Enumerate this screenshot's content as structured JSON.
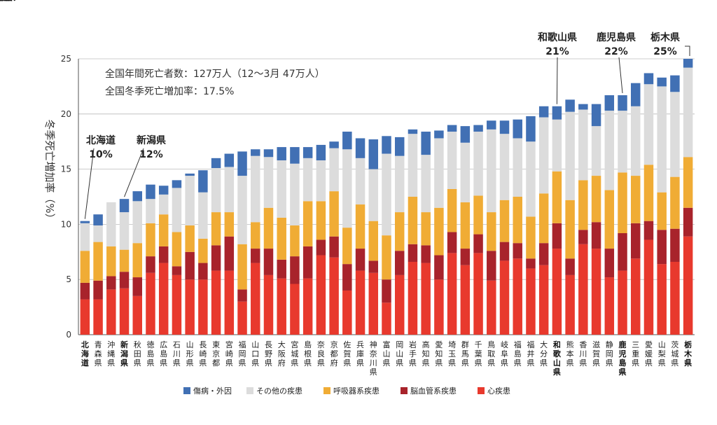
{
  "chart_data": {
    "type": "bar",
    "stacked": true,
    "ylabel": "冬季死亡増加率（%）",
    "ylim": [
      0,
      25
    ],
    "yticks": [
      0,
      5,
      10,
      15,
      20,
      25
    ],
    "grid": true,
    "legend_position": "bottom",
    "notes": [
      "全国年間死亡者数：127万人（12〜3月 47万人）",
      "全国冬季死亡増加率：17.5%"
    ],
    "categories": [
      "北海道",
      "青森県",
      "沖縄県",
      "新潟県",
      "秋田県",
      "徳島県",
      "広島県",
      "石川県",
      "山形県",
      "長崎県",
      "東京都",
      "宮崎県",
      "福岡県",
      "山口県",
      "長野県",
      "大阪府",
      "宮城県",
      "島根県",
      "奈良県",
      "京都府",
      "佐賀県",
      "兵庫県",
      "神奈川県",
      "富山県",
      "岡山県",
      "岩手県",
      "高知県",
      "愛知県",
      "埼玉県",
      "群馬県",
      "千葉県",
      "鳥取県",
      "岐阜県",
      "福島県",
      "福井県",
      "大分県",
      "和歌山県",
      "熊本県",
      "香川県",
      "滋賀県",
      "静岡県",
      "鹿児島県",
      "三重県",
      "愛媛県",
      "山梨県",
      "茨城県",
      "栃木県"
    ],
    "highlighted": [
      "北海道",
      "新潟県",
      "和歌山県",
      "鹿児島県",
      "栃木県"
    ],
    "series": [
      {
        "name": "心疾患",
        "color": "#e8392d",
        "values": [
          3.2,
          3.2,
          4.1,
          4.2,
          3.5,
          5.6,
          6.5,
          5.4,
          5.0,
          5.0,
          5.8,
          5.8,
          3.0,
          6.5,
          5.4,
          5.1,
          4.6,
          5.1,
          7.2,
          7.0,
          4.0,
          5.8,
          5.6,
          2.9,
          5.4,
          6.6,
          6.5,
          5.0,
          7.4,
          6.3,
          7.4,
          4.9,
          6.7,
          6.9,
          6.0,
          6.3,
          7.8,
          5.4,
          8.2,
          7.8,
          5.2,
          5.8,
          6.9,
          8.6,
          6.4,
          6.6,
          8.9
        ]
      },
      {
        "name": "脳血管系疾患",
        "color": "#a8232b",
        "values": [
          1.5,
          1.7,
          1.2,
          1.5,
          1.7,
          1.5,
          1.5,
          0.8,
          2.5,
          1.5,
          2.3,
          3.1,
          1.1,
          1.3,
          2.4,
          1.7,
          2.5,
          2.9,
          1.4,
          1.9,
          2.4,
          2.0,
          1.1,
          2.1,
          2.2,
          1.6,
          1.6,
          2.2,
          1.9,
          1.5,
          1.7,
          2.7,
          1.7,
          1.4,
          0.9,
          2.0,
          2.3,
          1.5,
          1.3,
          2.4,
          2.6,
          3.4,
          3.2,
          1.7,
          3.1,
          3.0,
          2.6
        ]
      },
      {
        "name": "呼吸器系疾患",
        "color": "#f0ac35",
        "values": [
          2.9,
          3.5,
          2.7,
          2.0,
          3.1,
          3.0,
          2.9,
          3.1,
          2.4,
          2.2,
          3.0,
          2.2,
          4.1,
          2.4,
          3.7,
          3.8,
          2.8,
          4.1,
          3.5,
          4.1,
          3.3,
          4.0,
          3.6,
          4.0,
          3.5,
          4.3,
          3.0,
          4.3,
          3.9,
          4.2,
          3.5,
          3.5,
          3.8,
          4.2,
          3.8,
          4.5,
          4.7,
          5.3,
          4.5,
          4.2,
          5.3,
          5.5,
          4.3,
          5.1,
          3.4,
          4.7,
          4.6
        ]
      },
      {
        "name": "その他の疾患",
        "color": "#dcdcdc",
        "values": [
          2.5,
          1.5,
          4.0,
          3.4,
          3.8,
          2.2,
          1.8,
          4.0,
          4.5,
          4.2,
          4.0,
          4.1,
          6.2,
          6.0,
          4.6,
          5.2,
          5.6,
          3.9,
          3.7,
          3.9,
          7.1,
          4.2,
          4.7,
          7.4,
          5.1,
          5.7,
          5.2,
          6.3,
          5.2,
          5.4,
          5.8,
          7.5,
          6.0,
          5.3,
          6.8,
          6.9,
          4.7,
          8.0,
          6.4,
          4.5,
          7.2,
          5.6,
          6.3,
          7.3,
          9.6,
          7.7,
          8.1
        ]
      },
      {
        "name": "傷病・外因",
        "color": "#4170b4",
        "values": [
          0.2,
          1.0,
          0.0,
          1.2,
          0.9,
          1.3,
          0.8,
          0.7,
          0.2,
          2.0,
          0.9,
          1.2,
          2.2,
          0.6,
          0.7,
          1.2,
          1.5,
          1.0,
          1.4,
          0.6,
          1.6,
          1.8,
          2.7,
          1.6,
          1.7,
          0.4,
          2.1,
          0.7,
          0.6,
          1.5,
          0.6,
          0.8,
          1.2,
          1.7,
          2.3,
          1.0,
          1.2,
          1.1,
          0.5,
          2.0,
          1.4,
          1.4,
          2.1,
          1.0,
          0.8,
          1.5,
          0.8
        ]
      }
    ],
    "totals": [
      10.3,
      10.9,
      12.0,
      12.3,
      13.0,
      13.6,
      13.5,
      14.0,
      14.6,
      14.9,
      16.0,
      16.4,
      16.6,
      16.8,
      16.8,
      17.0,
      17.0,
      17.0,
      17.2,
      17.5,
      18.4,
      17.8,
      17.7,
      18.0,
      17.9,
      18.6,
      18.4,
      18.5,
      19.0,
      18.9,
      19.0,
      19.4,
      19.4,
      19.5,
      19.8,
      20.7,
      20.7,
      21.3,
      20.9,
      20.9,
      21.7,
      21.7,
      22.8,
      23.7,
      23.3,
      23.5,
      25.0
    ],
    "annotations": [
      {
        "category": "北海道",
        "name": "北海道",
        "value": "10%"
      },
      {
        "category": "新潟県",
        "name": "新潟県",
        "value": "12%"
      },
      {
        "category": "和歌山県",
        "name": "和歌山県",
        "value": "21%"
      },
      {
        "category": "鹿児島県",
        "name": "鹿児島県",
        "value": "22%"
      },
      {
        "category": "栃木県",
        "name": "栃木県",
        "value": "25%"
      }
    ]
  }
}
